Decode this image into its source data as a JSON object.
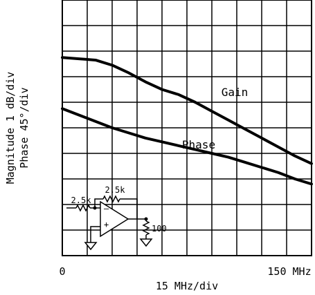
{
  "chart_data": {
    "type": "line",
    "x_axis": {
      "label": "15 MHz/div",
      "range": [
        0,
        150
      ],
      "unit": "MHz",
      "divisions": 10,
      "tick_labels": [
        {
          "value": 0,
          "text": "0"
        },
        {
          "value": 150,
          "text": "150 MHz"
        }
      ]
    },
    "y_axis": {
      "label_line1": "Magnitude 1 dB/div",
      "label_line2": "Phase 45°/div",
      "range": [
        0,
        10
      ],
      "divisions": 10
    },
    "grid": true,
    "series": [
      {
        "name": "Gain",
        "color": "#000000",
        "points": [
          [
            0,
            7.75
          ],
          [
            10,
            7.7
          ],
          [
            20,
            7.65
          ],
          [
            30,
            7.45
          ],
          [
            40,
            7.15
          ],
          [
            50,
            6.8
          ],
          [
            60,
            6.5
          ],
          [
            70,
            6.3
          ],
          [
            80,
            6.0
          ],
          [
            90,
            5.65
          ],
          [
            100,
            5.3
          ],
          [
            110,
            4.95
          ],
          [
            120,
            4.6
          ],
          [
            130,
            4.25
          ],
          [
            140,
            3.9
          ],
          [
            150,
            3.6
          ]
        ]
      },
      {
        "name": "Phase",
        "color": "#000000",
        "points": [
          [
            0,
            5.75
          ],
          [
            10,
            5.5
          ],
          [
            20,
            5.25
          ],
          [
            30,
            5.0
          ],
          [
            40,
            4.8
          ],
          [
            50,
            4.6
          ],
          [
            60,
            4.45
          ],
          [
            70,
            4.3
          ],
          [
            80,
            4.15
          ],
          [
            90,
            4.0
          ],
          [
            100,
            3.85
          ],
          [
            110,
            3.65
          ],
          [
            120,
            3.45
          ],
          [
            130,
            3.25
          ],
          [
            140,
            3.0
          ],
          [
            150,
            2.8
          ]
        ]
      }
    ],
    "inset_circuit": {
      "input_resistor": "2.5k",
      "feedback_resistor": "2.5k",
      "load_resistor": "100",
      "minus_sign": "–",
      "plus_sign": "+"
    }
  }
}
